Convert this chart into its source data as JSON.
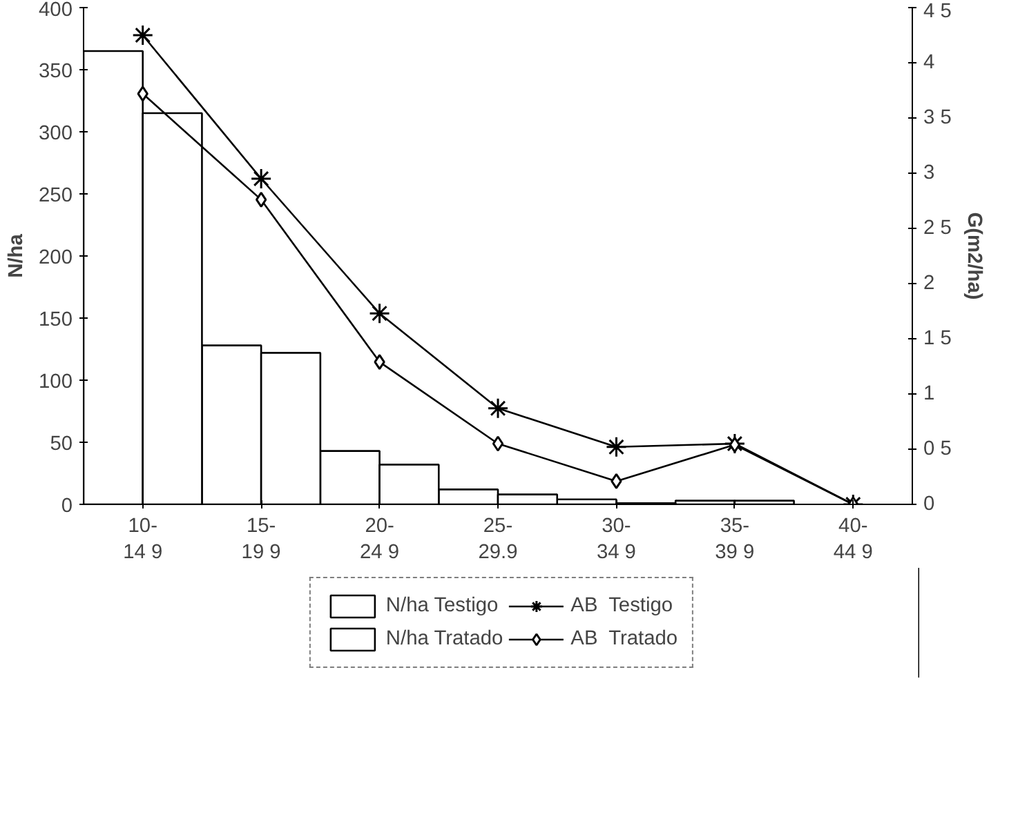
{
  "chart_data": {
    "type": "bar",
    "ylabel": "N/ha",
    "y2label": "G(m2/ha)",
    "categories": [
      "10-\n14 9",
      "15-\n19 9",
      "20-\n24 9",
      "25-\n29.9",
      "30-\n34 9",
      "35-\n39 9",
      "40-\n44 9"
    ],
    "series": [
      {
        "name": "N/ha Testigo",
        "color": "#ffffff",
        "values": [
          365,
          128,
          43,
          12,
          4,
          3,
          0
        ]
      },
      {
        "name": "N/ha Tratado",
        "color": "#ffffff",
        "values": [
          315,
          122,
          32,
          8,
          1,
          3,
          0
        ]
      },
      {
        "name": "AB  Testigo",
        "type": "line",
        "axis": "y2",
        "marker": "cross",
        "color": "#000000",
        "values": [
          4.25,
          2.95,
          1.73,
          0.87,
          0.52,
          0.55,
          0
        ]
      },
      {
        "name": "AB  Tratado",
        "type": "line",
        "axis": "y2",
        "marker": "diamond",
        "color": "#000000",
        "values": [
          3.72,
          2.76,
          1.29,
          0.55,
          0.21,
          0.54,
          0
        ]
      }
    ],
    "ylim": [
      0,
      400
    ],
    "yticks": [
      0,
      50,
      100,
      150,
      200,
      250,
      300,
      350,
      400
    ],
    "y2lim": [
      0,
      4.5
    ],
    "y2ticks": [
      0,
      {
        "value": 0.5,
        "label": "0 5"
      },
      1,
      {
        "value": 1.5,
        "label": "1 5"
      },
      2,
      {
        "value": 2.5,
        "label": "2 5"
      },
      3,
      {
        "value": 3.5,
        "label": "3 5"
      },
      4,
      {
        "value": 4.5,
        "label": "4 5"
      }
    ],
    "grid": false,
    "legend": "bottom"
  }
}
